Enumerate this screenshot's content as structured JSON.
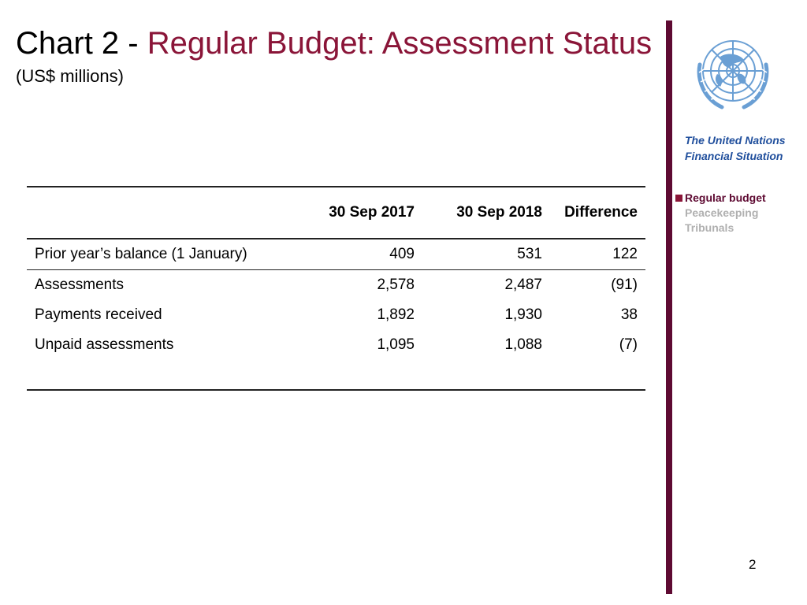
{
  "header": {
    "title_prefix": "Chart 2 -",
    "title_main": "Regular Budget: Assessment Status",
    "subtitle": "(US$ millions)"
  },
  "sidebar": {
    "logo": "un-emblem",
    "caption_line1": "The United Nations",
    "caption_line2": "Financial Situation",
    "items": [
      {
        "label": "Regular budget",
        "active": true
      },
      {
        "label": "Peacekeeping",
        "active": false
      },
      {
        "label": "Tribunals",
        "active": false
      }
    ]
  },
  "table": {
    "columns": [
      "",
      "30 Sep 2017",
      "30 Sep 2018",
      "Difference"
    ],
    "rows": [
      {
        "label": "Prior year’s balance (1 January)",
        "v2017": "409",
        "v2018": "531",
        "diff": "122"
      },
      {
        "label": "Assessments",
        "v2017": "2,578",
        "v2018": "2,487",
        "diff": "(91)"
      },
      {
        "label": "Payments received",
        "v2017": "1,892",
        "v2018": "1,930",
        "diff": "38"
      },
      {
        "label": "Unpaid assessments",
        "v2017": "1,095",
        "v2018": "1,088",
        "diff": "(7)"
      }
    ]
  },
  "footer": {
    "page_number": "2"
  },
  "colors": {
    "accent": "#8a1538",
    "bar": "#5e0a32",
    "caption": "#1f4e9c",
    "inactive": "#b0b0b0",
    "emblem": "#6a9fd4"
  }
}
